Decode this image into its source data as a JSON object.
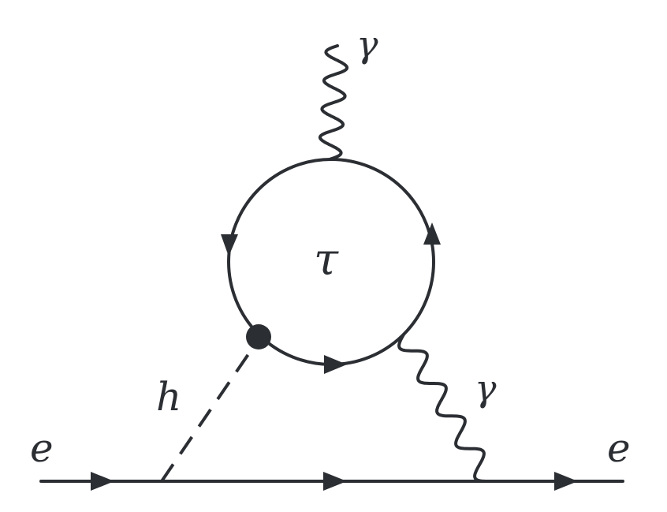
{
  "diagram": {
    "labels": {
      "e_in": "e",
      "e_out": "e",
      "h": "h",
      "tau": "τ",
      "gamma_top": "γ",
      "gamma_right": "γ"
    },
    "stroke_color": "#2b2e33"
  }
}
